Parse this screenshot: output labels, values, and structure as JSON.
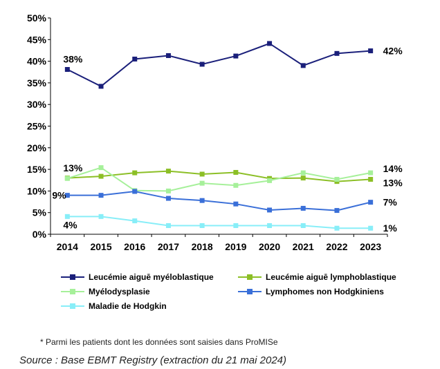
{
  "chart_data": {
    "type": "line",
    "title": "",
    "xlabel": "",
    "ylabel": "",
    "ylim": [
      0,
      50
    ],
    "y_tick_step": 5,
    "y_tick_suffix": "%",
    "grid": false,
    "legend_position": "bottom",
    "x": [
      "2014",
      "2015",
      "2016",
      "2017",
      "2018",
      "2019",
      "2020",
      "2021",
      "2022",
      "2023"
    ],
    "series": [
      {
        "name": "Leucémie aiguē myéloblastique",
        "color": "#1a1f7a",
        "values": [
          38.1,
          34.2,
          40.5,
          41.3,
          39.3,
          41.2,
          44.1,
          39.0,
          41.8,
          42.4
        ],
        "labels": {
          "first": "38%",
          "last": "42%"
        }
      },
      {
        "name": "Leucémie aiguē lymphoblastique",
        "color": "#8cbf26",
        "values": [
          13.0,
          13.4,
          14.2,
          14.6,
          13.9,
          14.3,
          12.9,
          13.0,
          12.2,
          12.7
        ],
        "labels": {
          "first": "",
          "last": "13%"
        }
      },
      {
        "name": "Myélodysplasie",
        "color": "#a6f09a",
        "values": [
          12.9,
          15.4,
          10.1,
          10.0,
          11.8,
          11.3,
          12.4,
          14.2,
          12.7,
          14.2
        ],
        "labels": {
          "first": "13%",
          "last": "14%"
        }
      },
      {
        "name": "Lymphomes non Hodgkiniens",
        "color": "#3a6fd8",
        "values": [
          9.0,
          9.0,
          9.9,
          8.3,
          7.8,
          7.0,
          5.6,
          6.0,
          5.5,
          7.4
        ],
        "labels": {
          "first": "9%",
          "last": "7%"
        }
      },
      {
        "name": "Maladie de Hodgkin",
        "color": "#88eef8",
        "values": [
          4.1,
          4.1,
          3.1,
          2.0,
          2.0,
          2.0,
          2.0,
          2.0,
          1.4,
          1.4
        ],
        "labels": {
          "first": "4%",
          "last": "1%"
        }
      }
    ]
  },
  "footnote": "* Parmi les patients dont les données sont saisies dans ProMISe",
  "source": "Source : Base EBMT Registry (extraction du 21 mai 2024)"
}
